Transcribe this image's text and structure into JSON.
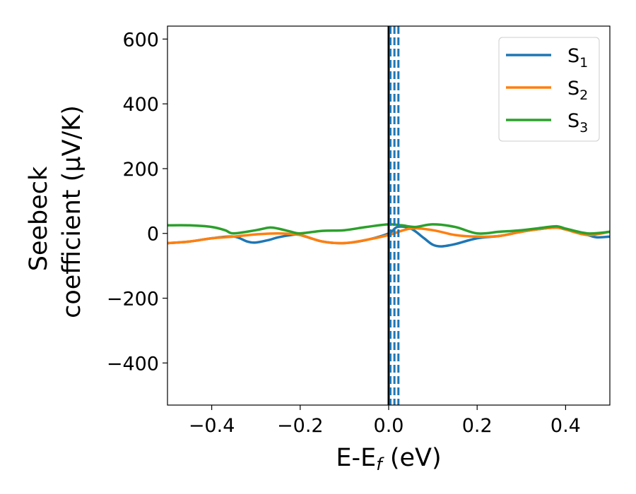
{
  "chart_data": {
    "type": "line",
    "title": "",
    "xlabel": {
      "main": "E-E",
      "sub": "f",
      "rest": " (eV)"
    },
    "ylabel": {
      "line1": "Seebeck",
      "line2": "coefficient  (μV/K)"
    },
    "xlim": [
      -0.5,
      0.5
    ],
    "ylim": [
      -530,
      640
    ],
    "xticks": [
      -0.4,
      -0.2,
      0.0,
      0.2,
      0.4
    ],
    "xtick_labels": [
      "−0.4",
      "−0.2",
      "0.0",
      "0.2",
      "0.4"
    ],
    "yticks": [
      -400,
      -200,
      0,
      200,
      400,
      600
    ],
    "ytick_labels": [
      "−400",
      "−200",
      "0",
      "200",
      "400",
      "600"
    ],
    "grid": false,
    "legend_position": "top-right",
    "vertical_lines": [
      {
        "x": 0.0,
        "color": "#000000",
        "style": "solid"
      },
      {
        "x": 0.004,
        "color": "#1f77b4",
        "style": "dashed"
      },
      {
        "x": 0.013,
        "color": "#1f77b4",
        "style": "dashed"
      },
      {
        "x": 0.022,
        "color": "#1f77b4",
        "style": "dashed"
      }
    ],
    "series": [
      {
        "name": "S",
        "sub": "1",
        "color": "#1f77b4",
        "x": [
          -0.5,
          -0.45,
          -0.4,
          -0.35,
          -0.32,
          -0.3,
          -0.27,
          -0.25,
          -0.22,
          -0.2,
          -0.15,
          -0.1,
          -0.05,
          0.0,
          0.02,
          0.05,
          0.08,
          0.1,
          0.12,
          0.15,
          0.2,
          0.25,
          0.3,
          0.35,
          0.38,
          0.4,
          0.42,
          0.45,
          0.47,
          0.5
        ],
        "y": [
          -30,
          -25,
          -15,
          -10,
          -25,
          -28,
          -20,
          -12,
          -5,
          -5,
          -25,
          -30,
          -20,
          0,
          20,
          15,
          -15,
          -35,
          -40,
          -33,
          -15,
          -8,
          5,
          15,
          18,
          12,
          5,
          -5,
          -12,
          -10
        ]
      },
      {
        "name": "S",
        "sub": "2",
        "color": "#ff7f0e",
        "x": [
          -0.5,
          -0.45,
          -0.4,
          -0.35,
          -0.3,
          -0.25,
          -0.2,
          -0.15,
          -0.1,
          -0.05,
          0.0,
          0.05,
          0.1,
          0.15,
          0.2,
          0.25,
          0.3,
          0.35,
          0.38,
          0.4,
          0.45,
          0.5
        ],
        "y": [
          -30,
          -25,
          -15,
          -10,
          -3,
          0,
          -5,
          -25,
          -30,
          -20,
          -5,
          15,
          10,
          -5,
          -10,
          -8,
          5,
          15,
          18,
          12,
          -5,
          5
        ]
      },
      {
        "name": "S",
        "sub": "3",
        "color": "#2ca02c",
        "x": [
          -0.5,
          -0.45,
          -0.4,
          -0.37,
          -0.35,
          -0.3,
          -0.27,
          -0.25,
          -0.22,
          -0.2,
          -0.15,
          -0.1,
          -0.05,
          0.0,
          0.03,
          0.06,
          0.1,
          0.15,
          0.2,
          0.25,
          0.3,
          0.35,
          0.38,
          0.4,
          0.45,
          0.5
        ],
        "y": [
          25,
          25,
          20,
          10,
          0,
          10,
          18,
          15,
          5,
          0,
          8,
          10,
          20,
          28,
          25,
          20,
          28,
          20,
          0,
          5,
          10,
          18,
          22,
          15,
          0,
          5
        ]
      }
    ]
  }
}
